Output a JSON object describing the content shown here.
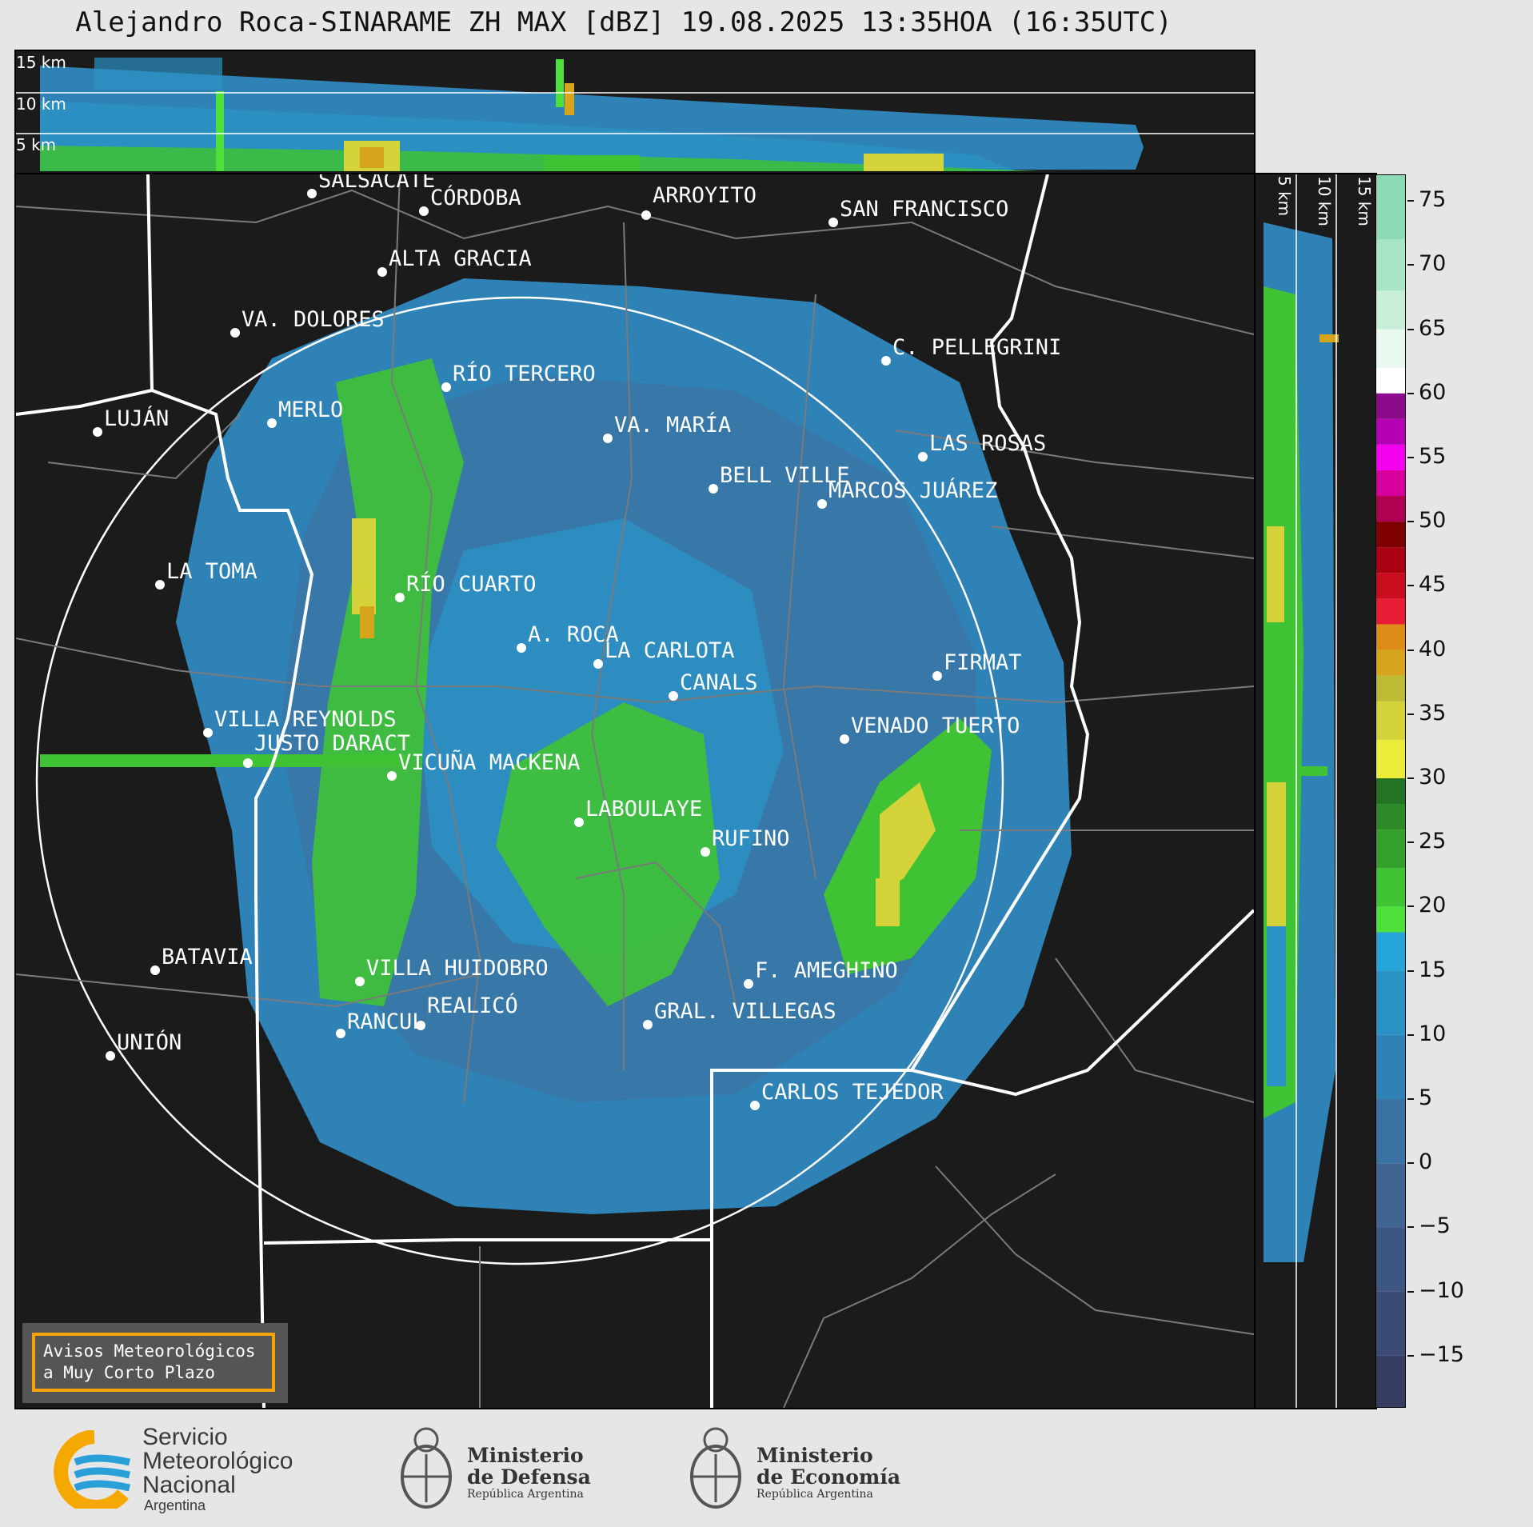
{
  "title": "Alejandro Roca-SINARAME ZH MAX [dBZ] 19.08.2025 13:35HOA (16:35UTC)",
  "top_panel": {
    "km_labels": [
      "15 km",
      "10 km",
      "5 km"
    ]
  },
  "side_panel": {
    "km_labels": [
      "5 km",
      "10 km",
      "15 km"
    ]
  },
  "colorbar": {
    "ticks": [
      "75",
      "70",
      "65",
      "60",
      "55",
      "50",
      "45",
      "40",
      "35",
      "30",
      "25",
      "20",
      "15",
      "10",
      "5",
      "0",
      "−5",
      "−10",
      "−15"
    ],
    "tick_values": [
      75,
      70,
      65,
      60,
      55,
      50,
      45,
      40,
      35,
      30,
      25,
      20,
      15,
      10,
      5,
      0,
      -5,
      -10,
      -15
    ],
    "range": [
      -19,
      77
    ],
    "segments": [
      {
        "from": -19,
        "to": -15,
        "color": "#383d62"
      },
      {
        "from": -15,
        "to": -10,
        "color": "#3c4a76"
      },
      {
        "from": -10,
        "to": -5,
        "color": "#3e5684"
      },
      {
        "from": -5,
        "to": 0,
        "color": "#3f6491"
      },
      {
        "from": 0,
        "to": 5,
        "color": "#3a73a3"
      },
      {
        "from": 5,
        "to": 10,
        "color": "#2f82b5"
      },
      {
        "from": 10,
        "to": 15,
        "color": "#2a92c5"
      },
      {
        "from": 15,
        "to": 18,
        "color": "#26a6d8"
      },
      {
        "from": 18,
        "to": 20,
        "color": "#4de03a"
      },
      {
        "from": 20,
        "to": 23,
        "color": "#3fc234"
      },
      {
        "from": 23,
        "to": 26,
        "color": "#35a02c"
      },
      {
        "from": 26,
        "to": 28,
        "color": "#2c8a28"
      },
      {
        "from": 28,
        "to": 30,
        "color": "#247322"
      },
      {
        "from": 30,
        "to": 33,
        "color": "#ecec3a"
      },
      {
        "from": 33,
        "to": 36,
        "color": "#d4d43a"
      },
      {
        "from": 36,
        "to": 38,
        "color": "#bdbb33"
      },
      {
        "from": 38,
        "to": 40,
        "color": "#d7a41e"
      },
      {
        "from": 40,
        "to": 42,
        "color": "#de8c18"
      },
      {
        "from": 42,
        "to": 44,
        "color": "#e91c35"
      },
      {
        "from": 44,
        "to": 46,
        "color": "#c90d1e"
      },
      {
        "from": 46,
        "to": 48,
        "color": "#a90012"
      },
      {
        "from": 48,
        "to": 50,
        "color": "#7f0000"
      },
      {
        "from": 50,
        "to": 52,
        "color": "#b00050"
      },
      {
        "from": 52,
        "to": 54,
        "color": "#d8009c"
      },
      {
        "from": 54,
        "to": 56,
        "color": "#f500ee"
      },
      {
        "from": 56,
        "to": 58,
        "color": "#b500b5"
      },
      {
        "from": 58,
        "to": 60,
        "color": "#8c0a8c"
      },
      {
        "from": 60,
        "to": 62,
        "color": "#ffffff"
      },
      {
        "from": 62,
        "to": 65,
        "color": "#e8f8ee"
      },
      {
        "from": 65,
        "to": 68,
        "color": "#c8eed8"
      },
      {
        "from": 68,
        "to": 72,
        "color": "#a8e4c6"
      },
      {
        "from": 72,
        "to": 77,
        "color": "#8cdbb6"
      }
    ]
  },
  "cities": [
    {
      "name": "SALSACATE"
    },
    {
      "name": "CÓRDOBA"
    },
    {
      "name": "ARROYITO"
    },
    {
      "name": "SAN FRANCISCO"
    },
    {
      "name": "ALTA GRACIA"
    },
    {
      "name": "VA. DOLORES"
    },
    {
      "name": "C. PELLEGRINI"
    },
    {
      "name": "RÍO TERCERO"
    },
    {
      "name": "MERLO"
    },
    {
      "name": "LUJÁN"
    },
    {
      "name": "VA. MARÍA"
    },
    {
      "name": "LAS ROSAS"
    },
    {
      "name": "BELL VILLE"
    },
    {
      "name": "MARCOS JUÁREZ"
    },
    {
      "name": "LA TOMA"
    },
    {
      "name": "RÍO CUARTO"
    },
    {
      "name": "A. ROCA"
    },
    {
      "name": "LA CARLOTA"
    },
    {
      "name": "FIRMAT"
    },
    {
      "name": "CANALS"
    },
    {
      "name": "VILLA REYNOLDS"
    },
    {
      "name": "VENADO TUERTO"
    },
    {
      "name": "JUSTO DARACT"
    },
    {
      "name": "VICUÑA MACKENA"
    },
    {
      "name": "LABOULAYE"
    },
    {
      "name": "RUFINO"
    },
    {
      "name": "BATAVIA"
    },
    {
      "name": "VILLA HUIDOBRO"
    },
    {
      "name": "F. AMEGHINO"
    },
    {
      "name": "RANCUL"
    },
    {
      "name": "REALICÓ"
    },
    {
      "name": "GRAL. VILLEGAS"
    },
    {
      "name": "UNIÓN"
    },
    {
      "name": "CARLOS TEJEDOR"
    }
  ],
  "avisos": {
    "line1": "Avisos Meteorológicos",
    "line2": "a Muy Corto Plazo"
  },
  "logos": {
    "smn": {
      "line1": "Servicio",
      "line2": "Meteorológico",
      "line3": "Nacional",
      "country": "Argentina"
    },
    "defensa": {
      "line1": "Ministerio",
      "line2": "de Defensa",
      "sub": "República Argentina"
    },
    "economia": {
      "line1": "Ministerio",
      "line2": "de Economía",
      "sub": "República Argentina"
    }
  }
}
